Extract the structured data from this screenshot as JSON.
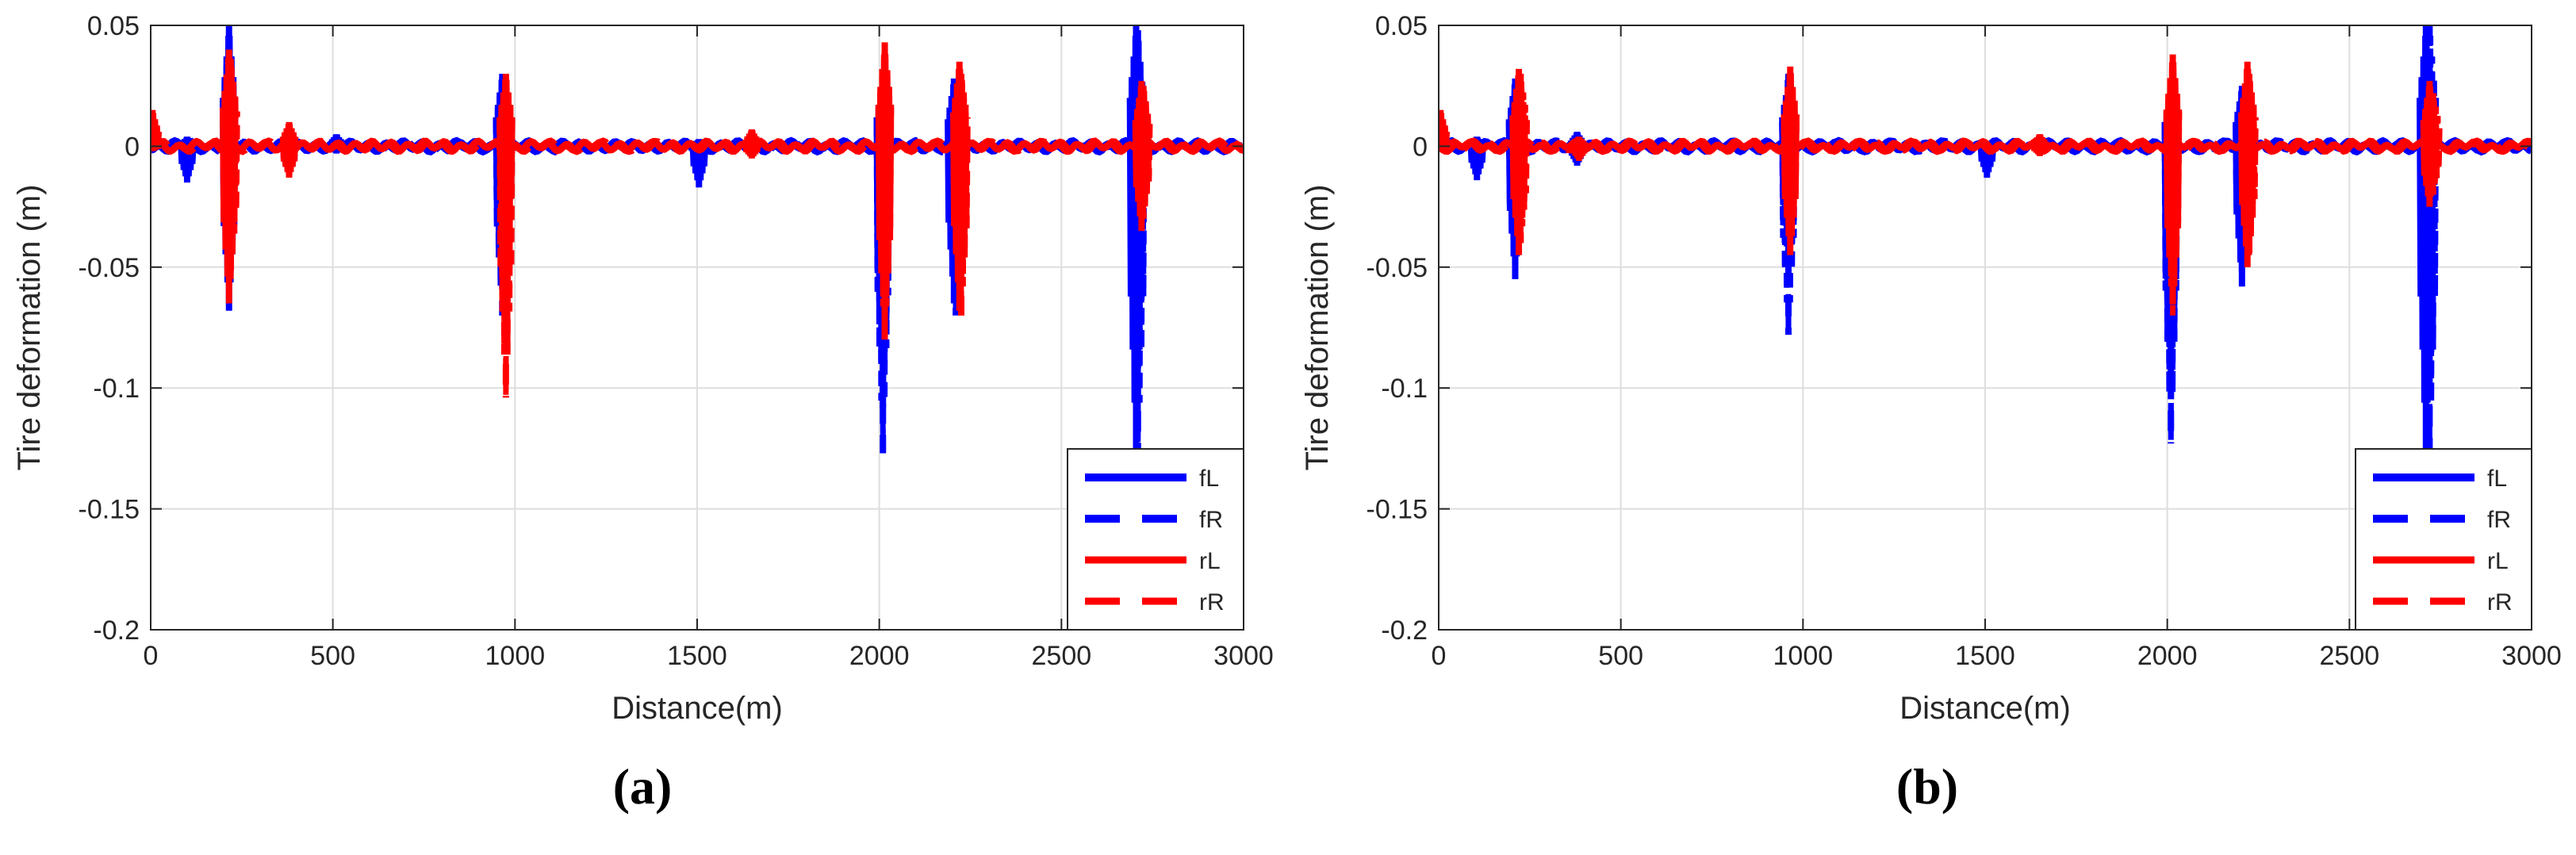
{
  "chart_data": [
    {
      "panel": "(a)",
      "type": "line",
      "xlabel": "Distance(m)",
      "ylabel": "Tire deformation (m)",
      "xlim": [
        0,
        3000
      ],
      "ylim": [
        -0.2,
        0.05
      ],
      "xticks": [
        0,
        500,
        1000,
        1500,
        2000,
        2500,
        3000
      ],
      "xtick_labels": [
        "0",
        "500",
        "1000",
        "1500",
        "2000",
        "2500",
        "3000"
      ],
      "yticks": [
        0.05,
        0,
        -0.05,
        -0.1,
        -0.15,
        -0.2
      ],
      "ytick_labels": [
        "0.05",
        "0",
        "-0.05",
        "-0.1",
        "-0.15",
        "-0.2"
      ],
      "grid": true,
      "legend_position": "bottom-right",
      "legend": [
        "fL",
        "fR",
        "rL",
        "rR"
      ],
      "series": [
        {
          "name": "fL",
          "color": "#0000ff",
          "style": "solid",
          "spikes": [
            [
              100,
              0.004,
              -0.015
            ],
            [
              215,
              0.05,
              -0.068
            ],
            [
              380,
              0.007,
              -0.012
            ],
            [
              510,
              0.005,
              -0.003
            ],
            [
              965,
              0.03,
              -0.055
            ],
            [
              1505,
              0.003,
              -0.017
            ],
            [
              2010,
              0.03,
              -0.108
            ],
            [
              2205,
              0.028,
              -0.065
            ],
            [
              2705,
              0.05,
              -0.128
            ]
          ]
        },
        {
          "name": "fR",
          "color": "#0000ff",
          "style": "dashed",
          "spikes": [
            [
              215,
              0.045,
              -0.06
            ],
            [
              965,
              0.028,
              -0.07
            ],
            [
              2010,
              0.025,
              -0.127
            ],
            [
              2210,
              0.025,
              -0.07
            ],
            [
              2710,
              0.048,
              -0.128
            ]
          ]
        },
        {
          "name": "rL",
          "color": "#ff0000",
          "style": "solid",
          "spikes": [
            [
              5,
              0.015,
              -0.002
            ],
            [
              215,
              0.04,
              -0.065
            ],
            [
              380,
              0.01,
              -0.013
            ],
            [
              975,
              0.03,
              -0.045
            ],
            [
              1650,
              0.007,
              -0.005
            ],
            [
              2015,
              0.04,
              -0.075
            ],
            [
              2220,
              0.035,
              -0.068
            ],
            [
              2720,
              0.027,
              -0.035
            ]
          ]
        },
        {
          "name": "rR",
          "color": "#ff0000",
          "style": "dashed",
          "spikes": [
            [
              220,
              0.036,
              -0.055
            ],
            [
              975,
              0.028,
              -0.104
            ],
            [
              2015,
              0.043,
              -0.08
            ],
            [
              2225,
              0.03,
              -0.07
            ],
            [
              2725,
              0.025,
              -0.03
            ]
          ]
        }
      ]
    },
    {
      "panel": "(b)",
      "type": "line",
      "xlabel": "Distance(m)",
      "ylabel": "Tire deformation (m)",
      "xlim": [
        0,
        3000
      ],
      "ylim": [
        -0.2,
        0.05
      ],
      "xticks": [
        0,
        500,
        1000,
        1500,
        2000,
        2500,
        3000
      ],
      "xtick_labels": [
        "0",
        "500",
        "1000",
        "1500",
        "2000",
        "2500",
        "3000"
      ],
      "yticks": [
        0.05,
        0,
        -0.05,
        -0.1,
        -0.15,
        -0.2
      ],
      "ytick_labels": [
        "0.05",
        "0",
        "-0.05",
        "-0.1",
        "-0.15",
        "-0.2"
      ],
      "grid": true,
      "legend_position": "bottom-right",
      "legend": [
        "fL",
        "fR",
        "rL",
        "rR"
      ],
      "series": [
        {
          "name": "fL",
          "color": "#0000ff",
          "style": "solid",
          "spikes": [
            [
              105,
              0.004,
              -0.014
            ],
            [
              210,
              0.028,
              -0.055
            ],
            [
              380,
              0.006,
              -0.008
            ],
            [
              960,
              0.025,
              -0.05
            ],
            [
              1505,
              0.002,
              -0.013
            ],
            [
              2010,
              0.025,
              -0.1
            ],
            [
              2205,
              0.025,
              -0.058
            ],
            [
              2710,
              0.05,
              -0.128
            ]
          ]
        },
        {
          "name": "fR",
          "color": "#0000ff",
          "style": "dashed",
          "spikes": [
            [
              210,
              0.025,
              -0.05
            ],
            [
              960,
              0.03,
              -0.078
            ],
            [
              2010,
              0.022,
              -0.123
            ],
            [
              2205,
              0.022,
              -0.055
            ],
            [
              2720,
              0.05,
              -0.128
            ]
          ]
        },
        {
          "name": "rL",
          "color": "#ff0000",
          "style": "solid",
          "spikes": [
            [
              5,
              0.015,
              -0.002
            ],
            [
              220,
              0.032,
              -0.045
            ],
            [
              385,
              0.004,
              -0.006
            ],
            [
              965,
              0.033,
              -0.045
            ],
            [
              1650,
              0.005,
              -0.004
            ],
            [
              2015,
              0.038,
              -0.065
            ],
            [
              2220,
              0.035,
              -0.05
            ],
            [
              2720,
              0.027,
              -0.025
            ]
          ]
        },
        {
          "name": "rR",
          "color": "#ff0000",
          "style": "dashed",
          "spikes": [
            [
              225,
              0.03,
              -0.04
            ],
            [
              965,
              0.025,
              -0.04
            ],
            [
              2015,
              0.035,
              -0.07
            ],
            [
              2225,
              0.03,
              -0.045
            ],
            [
              2730,
              0.022,
              -0.02
            ]
          ]
        }
      ]
    }
  ]
}
